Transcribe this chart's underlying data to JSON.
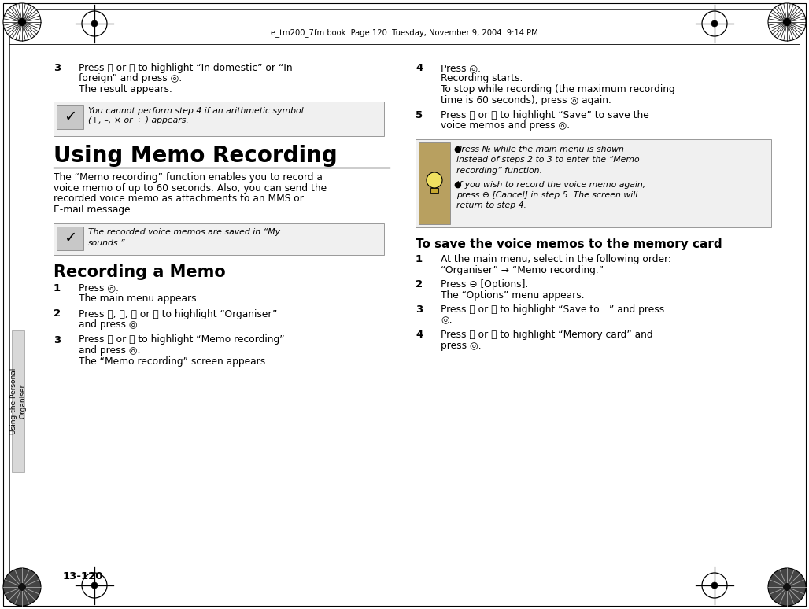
{
  "page_bg": "#ffffff",
  "header_text": "e_tm200_7fm.book  Page 120  Tuesday, November 9, 2004  9:14 PM",
  "footer_page_num": "13-120",
  "side_tab_text": "Using the Personal\nOrganiser",
  "title_using_memo": "Using Memo Recording",
  "subtitle_recording": "Recording a Memo",
  "subtitle_memory": "To save the voice memos to the memory card",
  "note1_line1": "You cannot perform step 4 if an arithmetic symbol",
  "note1_line2": "(+, –, × or ÷ ) appears.",
  "note2_line1": "The recorded voice memos are saved in “My",
  "note2_line2": "sounds.”",
  "intro_lines": [
    "The “Memo recording” function enables you to record a",
    "voice memo of up to 60 seconds. Also, you can send the",
    "recorded voice memo as attachments to an MMS or",
    "E-mail message."
  ],
  "step3_left_lines": [
    "Press ⓣ or ⓥ to highlight “In domestic” or “In",
    "foreign” and press ◎.",
    "The result appears."
  ],
  "step1_rec_lines": [
    "Press ◎.",
    "The main menu appears."
  ],
  "step2_rec_lines": [
    "Press ⓣ, ⓥ, ⓡ or ⓞ to highlight “Organiser”",
    "and press ◎."
  ],
  "step3_rec_lines": [
    "Press ⓣ or ⓥ to highlight “Memo recording”",
    "and press ◎.",
    "The “Memo recording” screen appears."
  ],
  "step4_right_lines": [
    "Press ◎.",
    "Recording starts.",
    "To stop while recording (the maximum recording",
    "time is 60 seconds), press ◎ again."
  ],
  "step5_right_lines": [
    "Press ⓣ or ⓥ to highlight “Save” to save the",
    "voice memos and press ◎."
  ],
  "note3_bullet1": [
    "Press № while the main menu is shown",
    "instead of steps 2 to 3 to enter the “Memo",
    "recording” function."
  ],
  "note3_bullet2": [
    "If you wish to record the voice memo again,",
    "press ⊖ [Cancel] in step 5. The screen will",
    "return to step 4."
  ],
  "mem_step1_lines": [
    "At the main menu, select in the following order:",
    "“Organiser” → “Memo recording.”"
  ],
  "mem_step2_lines": [
    "Press ⊖ [Options].",
    "The “Options” menu appears."
  ],
  "mem_step3_lines": [
    "Press ⓣ or ⓥ to highlight “Save to…” and press",
    "◎."
  ],
  "mem_step4_lines": [
    "Press ⓣ or ⓥ to highlight “Memory card” and",
    "press ◎."
  ]
}
